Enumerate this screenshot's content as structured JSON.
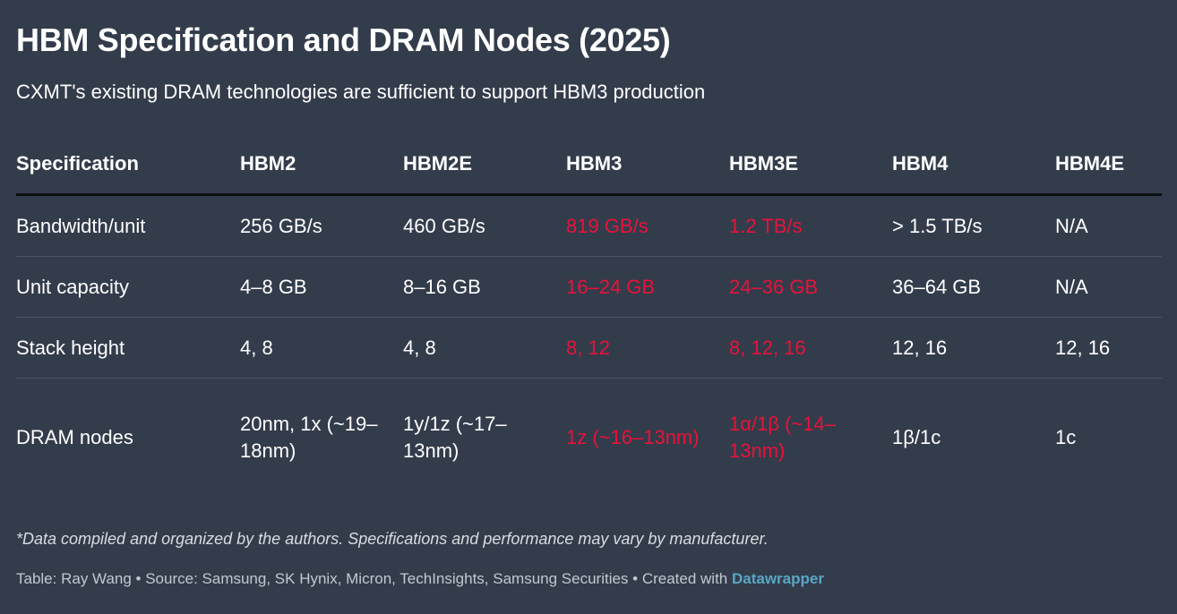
{
  "chart_data": {
    "type": "table",
    "title": "HBM Specification and DRAM Nodes (2025)",
    "subtitle": "CXMT's existing DRAM technologies are sufficient to support HBM3 production",
    "columns": [
      "Specification",
      "HBM2",
      "HBM2E",
      "HBM3",
      "HBM3E",
      "HBM4",
      "HBM4E"
    ],
    "highlighted_columns": [
      "HBM3",
      "HBM3E"
    ],
    "highlight_color": "#e8123a",
    "rows": [
      [
        "Bandwidth/unit",
        "256 GB/s",
        "460 GB/s",
        "819 GB/s",
        "1.2 TB/s",
        "> 1.5 TB/s",
        "N/A"
      ],
      [
        "Unit capacity",
        "4–8 GB",
        "8–16 GB",
        "16–24 GB",
        "24–36 GB",
        "36–64 GB",
        "N/A"
      ],
      [
        "Stack height",
        "4, 8",
        "4, 8",
        "8, 12",
        "8, 12, 16",
        "12, 16",
        "12, 16"
      ],
      [
        "DRAM nodes",
        "20nm, 1x (~19–18nm)",
        "1y/1z (~17–13nm)",
        "1z (~16–13nm)",
        "1α/1β (~14–13nm)",
        "1β/1c",
        "1c"
      ]
    ],
    "footnote": "*Data compiled and organized by the authors. Specifications and performance may vary by manufacturer."
  },
  "credit": {
    "text": "Table: Ray Wang • Source: Samsung, SK Hynix, Micron, TechInsights, Samsung Securities • Created with ",
    "link_label": "Datawrapper"
  },
  "colors": {
    "background": "#333c4b",
    "text": "#ffffff",
    "accent_link": "#5aa7c4"
  }
}
